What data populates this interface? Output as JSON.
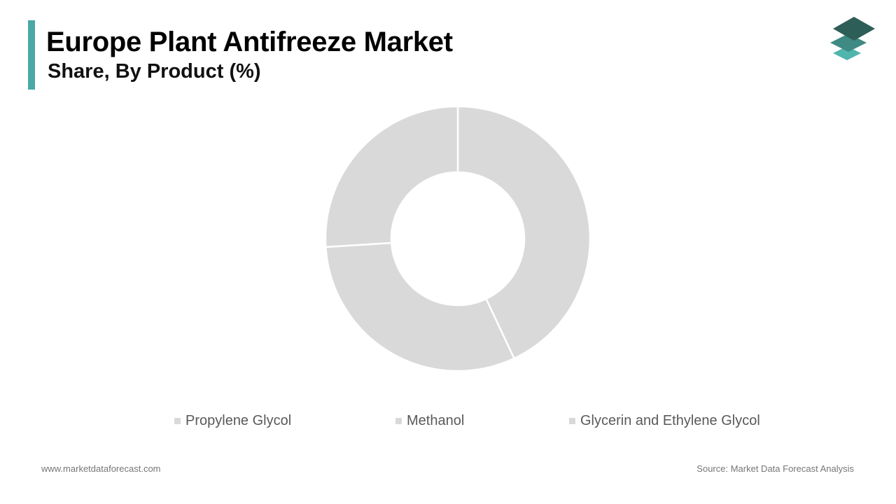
{
  "header": {
    "title": "Europe Plant Antifreeze Market",
    "subtitle": "Share, By Product (%)"
  },
  "footer": {
    "website": "www.marketdataforecast.com",
    "source": "Source: Market Data Forecast Analysis"
  },
  "logo": {
    "icon": "stacked-layers-icon",
    "colors": [
      "#2e5e58",
      "#3f8a83",
      "#4fb5ad"
    ]
  },
  "colors": {
    "accent": "#4aa8a6",
    "slice_fill": "#d9d9d9",
    "slice_border": "#ffffff"
  },
  "chart_data": {
    "type": "pie",
    "donut": true,
    "categories": [
      "Propylene Glycol",
      "Methanol",
      "Glycerin and Ethylene Glycol"
    ],
    "values": [
      43,
      31,
      26
    ],
    "unit": "%",
    "legend_position": "bottom",
    "colors": [
      "#d9d9d9",
      "#d9d9d9",
      "#d9d9d9"
    ]
  }
}
